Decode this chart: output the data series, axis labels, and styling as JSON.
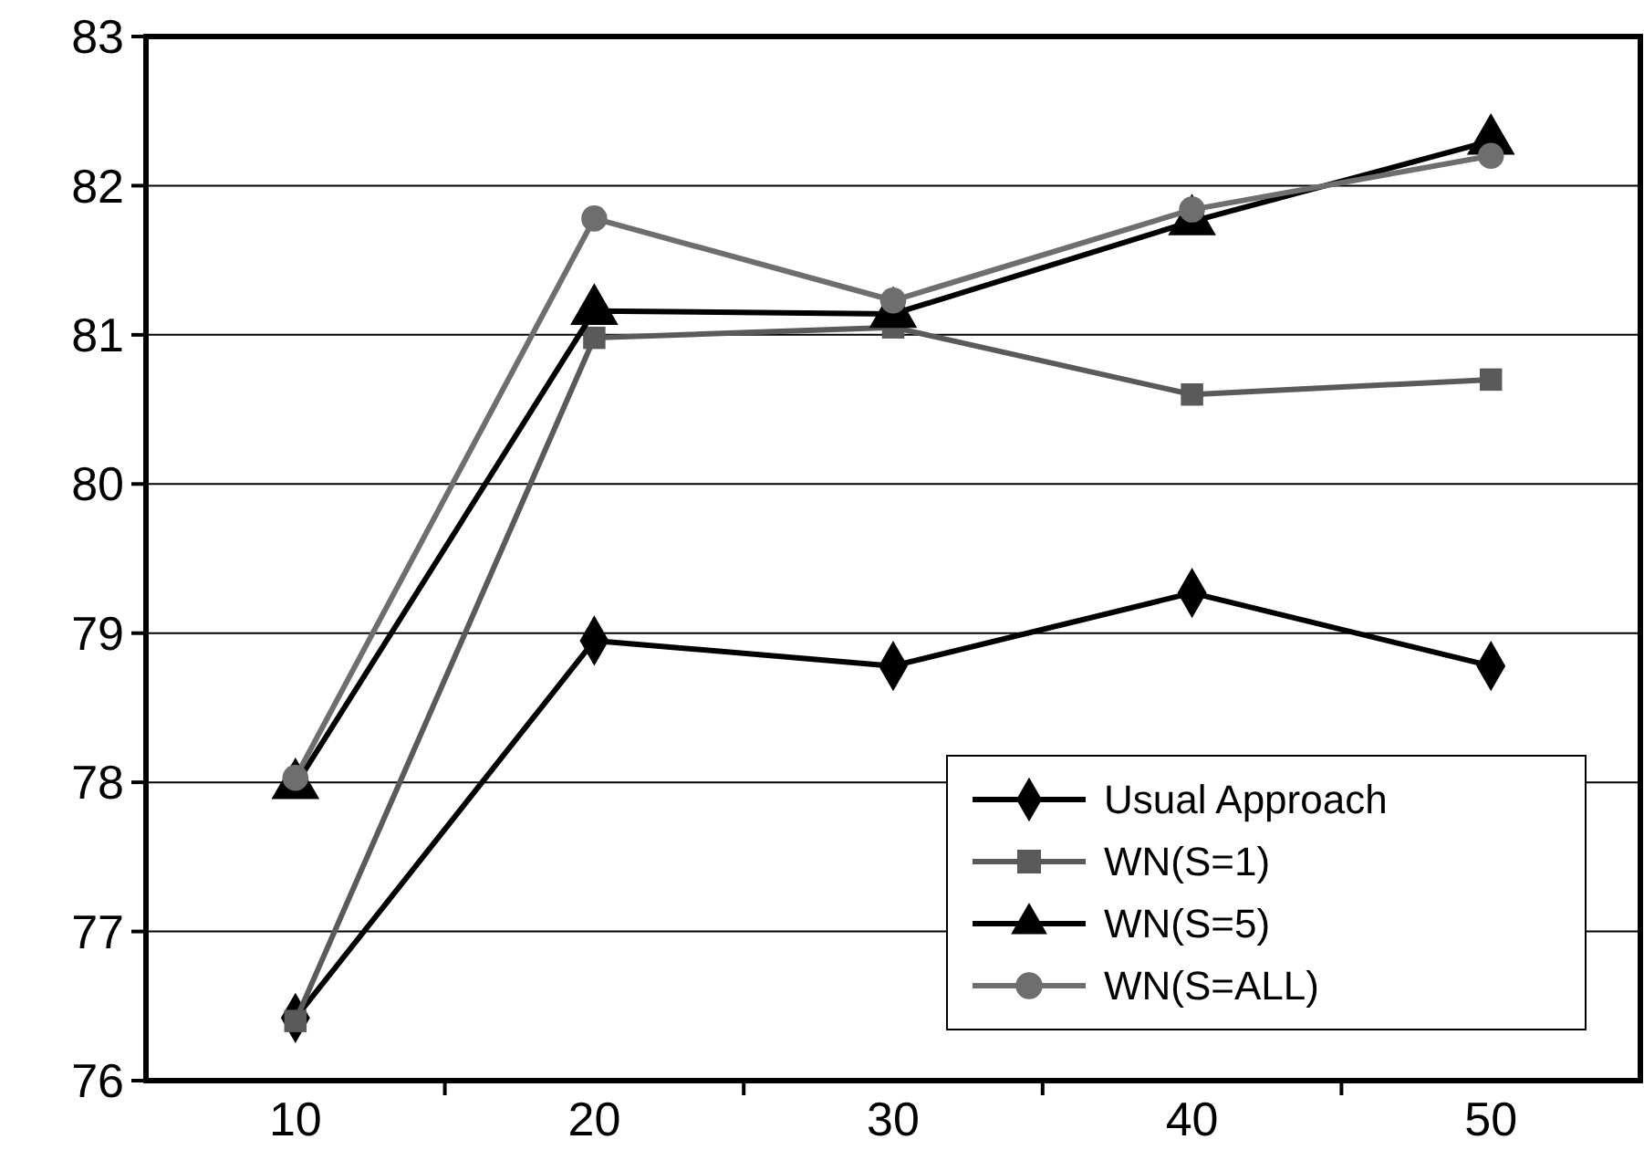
{
  "chart_data": {
    "type": "line",
    "categories": [
      "10",
      "20",
      "30",
      "40",
      "50"
    ],
    "ylim": [
      76,
      83
    ],
    "yticks": [
      76,
      77,
      78,
      79,
      80,
      81,
      82,
      83
    ],
    "grid": "y",
    "legend": "bottom right",
    "series": [
      {
        "name": "Usual Approach",
        "color": "#000000",
        "marker": "diamond",
        "values": [
          76.42,
          78.95,
          78.78,
          79.27,
          78.78
        ]
      },
      {
        "name": "WN(S=1)",
        "color": "#5a5a5a",
        "marker": "square",
        "values": [
          76.4,
          80.98,
          81.05,
          80.6,
          80.7
        ]
      },
      {
        "name": "WN(S=5)",
        "color": "#000000",
        "marker": "triangle",
        "values": [
          77.98,
          81.16,
          81.14,
          81.76,
          82.3
        ]
      },
      {
        "name": "WN(S=ALL)",
        "color": "#6e6e6e",
        "marker": "circle",
        "values": [
          78.03,
          81.78,
          81.23,
          81.84,
          82.2
        ]
      }
    ]
  }
}
